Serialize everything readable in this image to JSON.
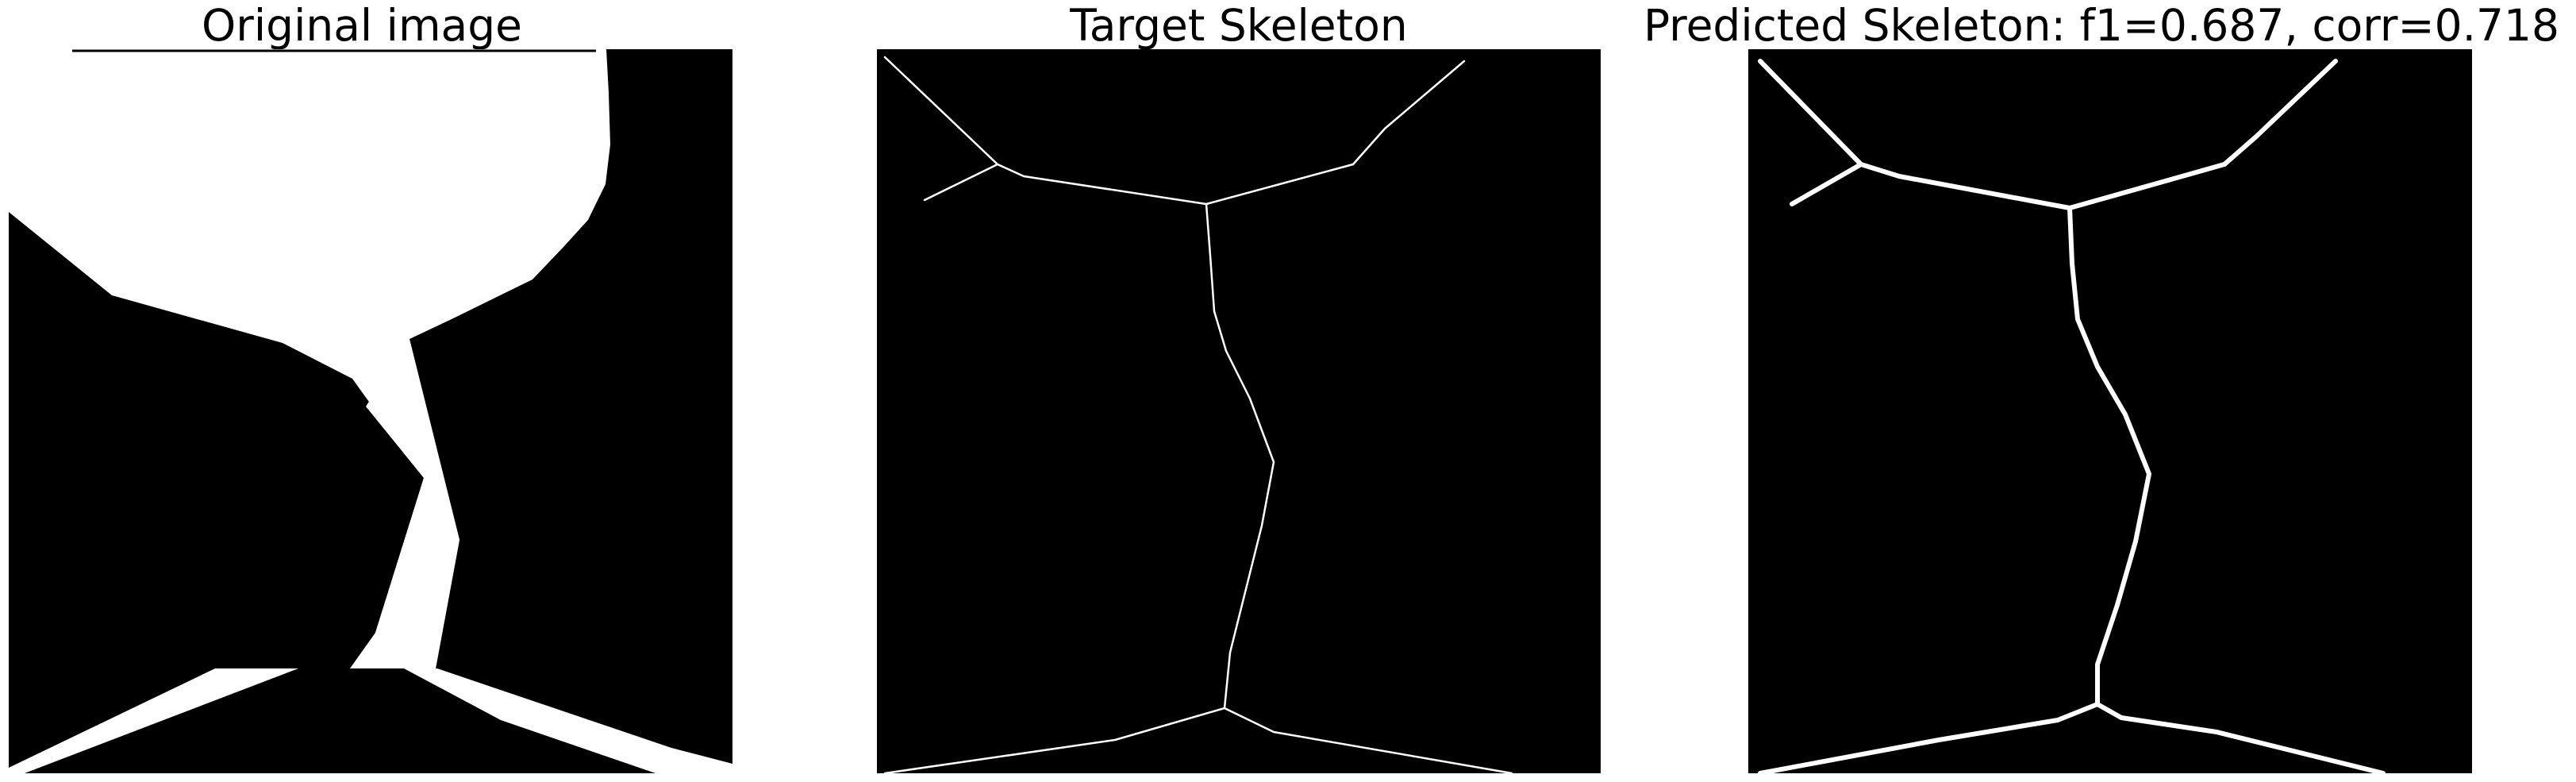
{
  "panels": [
    {
      "title": "Original image"
    },
    {
      "title": "Target Skeleton"
    },
    {
      "title": "Predicted Skeleton: f1=0.687, corr=0.718"
    }
  ],
  "colors": {
    "background": "#000000",
    "foreground": "#ffffff"
  }
}
